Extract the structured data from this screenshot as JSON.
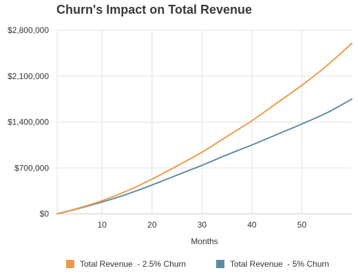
{
  "chart_data": {
    "type": "line",
    "title": "Churn's Impact on Total Revenue",
    "xlabel": "Months",
    "ylabel": "",
    "xlim": [
      1,
      60
    ],
    "ylim": [
      0,
      2800000
    ],
    "x_ticks": [
      10,
      20,
      30,
      40,
      50
    ],
    "y_ticks": [
      0,
      700000,
      1400000,
      2100000,
      2800000
    ],
    "y_tick_labels": [
      "$0",
      "$700,000",
      "$1,400,000",
      "$2,100,000",
      "$2,800,000"
    ],
    "grid": true,
    "legend_position": "bottom",
    "x": [
      1,
      5,
      10,
      15,
      20,
      25,
      30,
      35,
      40,
      45,
      50,
      55,
      60
    ],
    "series": [
      {
        "name": "Total Revenue  - 2.5% Churn",
        "color": "#ec9a4a",
        "values": [
          0,
          80000,
          200000,
          350000,
          530000,
          730000,
          940000,
          1180000,
          1420000,
          1690000,
          1960000,
          2260000,
          2600000
        ]
      },
      {
        "name": "Total Revenue  - 5% Churn",
        "color": "#5e8d9e",
        "values": [
          0,
          75000,
          180000,
          300000,
          440000,
          590000,
          740000,
          900000,
          1050000,
          1210000,
          1370000,
          1540000,
          1750000
        ]
      }
    ]
  }
}
